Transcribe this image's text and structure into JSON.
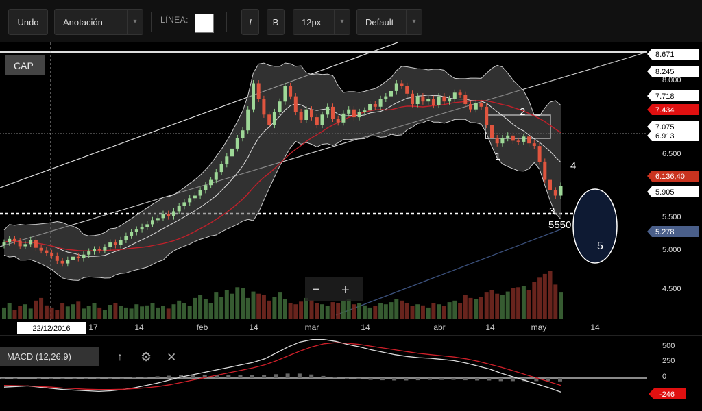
{
  "toolbar": {
    "undo": "Undo",
    "annotation": "Anotación",
    "line_label": "LÍNEA:",
    "italic": "I",
    "bold": "B",
    "font_size": "12px",
    "style": "Default",
    "caret": "▾"
  },
  "chart_data": {
    "type": "candlestick",
    "badge": "CAP",
    "date_label": "22/12/2016",
    "x_ticks": [
      "17",
      "14",
      "feb",
      "14",
      "mar",
      "14",
      "abr",
      "14",
      "may",
      "14"
    ],
    "y_ticks": [
      "8.000",
      "6.500",
      "5.500",
      "5.000",
      "4.500"
    ],
    "price_badges": [
      {
        "value": "8.671",
        "color": "#ffffff"
      },
      {
        "value": "8.245",
        "color": "#ffffff"
      },
      {
        "value": "7.718",
        "color": "#ffffff"
      },
      {
        "value": "7.434",
        "color": "#e01010"
      },
      {
        "value": "7.075",
        "color": "#ffffff"
      },
      {
        "value": "6.913",
        "color": "#ffffff"
      },
      {
        "value": "6.136,40",
        "color": "#c9331f"
      },
      {
        "value": "5.905",
        "color": "#ffffff"
      },
      {
        "value": "5.278",
        "color": "#4a5f8a"
      }
    ],
    "annotations": [
      "1",
      "2",
      "3",
      "5550",
      "4",
      "5"
    ],
    "close_prices": [
      5.05,
      5.12,
      5.08,
      4.98,
      5.02,
      5.1,
      4.95,
      4.9,
      4.85,
      4.8,
      4.7,
      4.65,
      4.72,
      4.78,
      4.75,
      4.82,
      4.88,
      4.92,
      4.9,
      4.96,
      5.05,
      5.0,
      5.1,
      5.18,
      5.25,
      5.3,
      5.35,
      5.4,
      5.48,
      5.52,
      5.6,
      5.55,
      5.65,
      5.75,
      5.82,
      5.9,
      5.95,
      6.05,
      6.15,
      6.25,
      6.4,
      6.55,
      6.7,
      6.85,
      7.05,
      7.2,
      7.6,
      8.1,
      7.8,
      7.5,
      7.3,
      7.55,
      7.75,
      8.05,
      7.85,
      7.55,
      7.4,
      7.6,
      7.45,
      7.3,
      7.5,
      7.65,
      7.42,
      7.35,
      7.52,
      7.6,
      7.45,
      7.55,
      7.58,
      7.7,
      7.65,
      7.8,
      7.85,
      7.95,
      8.1,
      8.05,
      7.9,
      7.7,
      7.85,
      7.75,
      7.8,
      7.68,
      7.85,
      7.75,
      7.8,
      7.92,
      7.88,
      7.7,
      7.6,
      7.72,
      7.65,
      7.3,
      7.05,
      6.95,
      7.05,
      7.1,
      7.0,
      6.98,
      7.08,
      6.95,
      6.9,
      6.6,
      6.25,
      6.05,
      5.95,
      6.14
    ],
    "volume": [
      22,
      30,
      18,
      25,
      28,
      20,
      35,
      40,
      26,
      22,
      18,
      30,
      24,
      28,
      33,
      20,
      25,
      30,
      22,
      18,
      27,
      30,
      25,
      22,
      20,
      28,
      24,
      26,
      30,
      22,
      25,
      20,
      28,
      35,
      30,
      25,
      40,
      45,
      38,
      30,
      50,
      42,
      55,
      48,
      60,
      58,
      40,
      52,
      48,
      45,
      35,
      42,
      50,
      38,
      30,
      28,
      33,
      40,
      36,
      30,
      28,
      25,
      32,
      30,
      35,
      38,
      28,
      30,
      26,
      22,
      25,
      30,
      28,
      32,
      38,
      35,
      30,
      25,
      28,
      26,
      22,
      30,
      28,
      25,
      32,
      35,
      30,
      45,
      40,
      38,
      42,
      50,
      55,
      48,
      45,
      52,
      58,
      60,
      62,
      55,
      70,
      78,
      85,
      90,
      65,
      50
    ],
    "macd_ticks": [
      "500",
      "250",
      "0",
      "-246"
    ],
    "macd_line": [
      -150,
      -140,
      -130,
      -150,
      -170,
      -190,
      -200,
      -210,
      -220,
      -210,
      -190,
      -160,
      -120,
      -80,
      -30,
      20,
      60,
      100,
      140,
      180,
      220,
      260,
      320,
      420,
      520,
      600,
      640,
      640,
      610,
      560,
      520,
      470,
      430,
      390,
      360,
      340,
      330,
      310,
      290,
      250,
      200,
      150,
      80,
      20,
      -40,
      -100,
      -160,
      -230
    ],
    "signal_line": [
      -120,
      -125,
      -130,
      -140,
      -150,
      -165,
      -175,
      -185,
      -190,
      -190,
      -185,
      -175,
      -160,
      -140,
      -110,
      -70,
      -30,
      10,
      50,
      90,
      130,
      170,
      220,
      290,
      370,
      450,
      520,
      570,
      590,
      580,
      560,
      530,
      500,
      470,
      440,
      410,
      390,
      370,
      350,
      320,
      280,
      230,
      180,
      120,
      60,
      0,
      -60,
      -120
    ],
    "macd_label": "MACD (12,26,9)",
    "macd_value": "-246"
  }
}
